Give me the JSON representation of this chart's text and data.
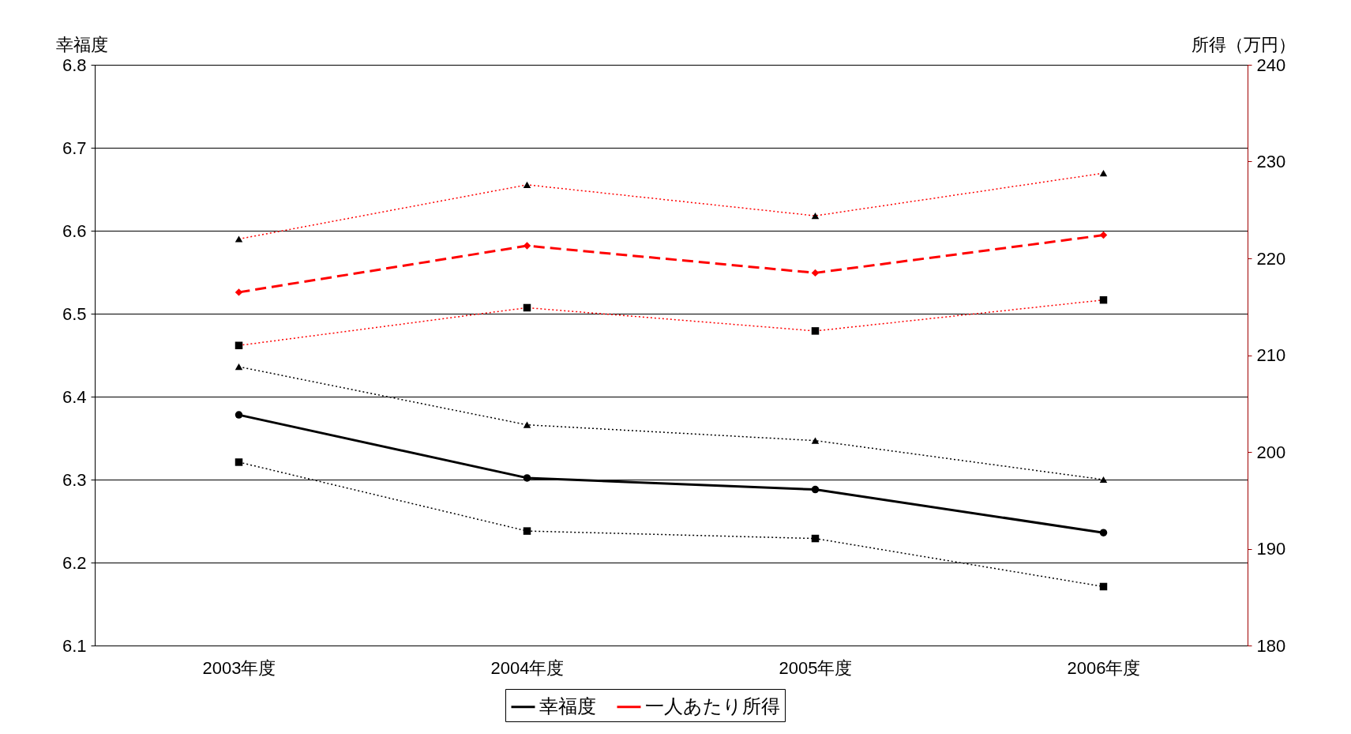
{
  "chart_data": {
    "type": "line",
    "ylabel": "幸福度",
    "y2label": "所得（万円）",
    "categories": [
      "2003年度",
      "2004年度",
      "2005年度",
      "2006年度"
    ],
    "series": [
      {
        "name": "幸福度",
        "color": "#000000",
        "values": [
          6.378,
          6.302,
          6.288,
          6.236
        ],
        "marker": "circle",
        "line_style": "solid"
      },
      {
        "color": "#000000",
        "values": [
          6.436,
          6.366,
          6.347,
          6.3
        ],
        "marker": "triangle",
        "line_style": "dotted"
      },
      {
        "color": "#000000",
        "values": [
          6.321,
          6.238,
          6.229,
          6.171
        ],
        "marker": "square",
        "line_style": "dotted"
      },
      {
        "name": "一人あたり所得",
        "color": "#ff0000",
        "values": [
          216.5,
          221.3,
          218.5,
          222.4
        ],
        "marker": "diamond",
        "line_style": "dashed",
        "axis": "y2"
      },
      {
        "color": "#ff0000",
        "values": [
          222.0,
          227.6,
          224.4,
          228.8
        ],
        "marker": "triangle",
        "line_style": "dotted",
        "axis": "y2"
      },
      {
        "color": "#ff0000",
        "values": [
          211.0,
          214.9,
          212.5,
          215.7
        ],
        "marker": "square",
        "line_style": "dotted",
        "axis": "y2"
      }
    ],
    "ylim": [
      6.1,
      6.8
    ],
    "yticks": [
      6.1,
      6.2,
      6.3,
      6.4,
      6.5,
      6.6,
      6.7,
      6.8
    ],
    "y2lim": [
      180,
      240
    ],
    "y2ticks": [
      180,
      190,
      200,
      210,
      220,
      230,
      240
    ],
    "grid": "y",
    "legend": "bottom"
  }
}
